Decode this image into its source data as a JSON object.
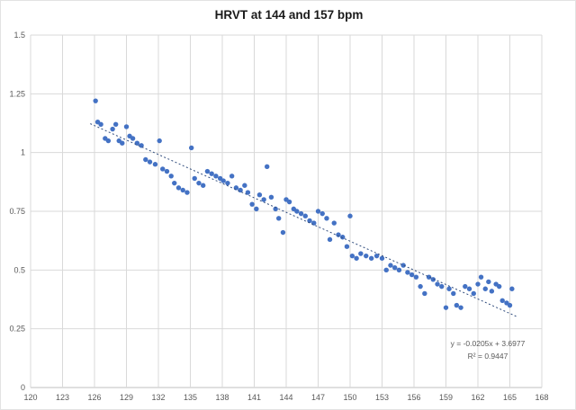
{
  "chart": {
    "title": "HRVT at 144 and 157 bpm",
    "annotation": {
      "equation": "y = -0.0205x + 3.6977",
      "r_squared": "R² = 0.9447"
    }
  },
  "chart_data": {
    "type": "scatter",
    "title": "HRVT at 144 and 157 bpm",
    "xlabel": "",
    "ylabel": "",
    "xlim": [
      120,
      168
    ],
    "ylim": [
      0,
      1.5
    ],
    "x_ticks": [
      120,
      123,
      126,
      129,
      132,
      135,
      138,
      141,
      144,
      147,
      150,
      153,
      156,
      159,
      162,
      165,
      168
    ],
    "y_ticks": [
      0,
      0.25,
      0.5,
      0.75,
      1,
      1.25,
      1.5
    ],
    "grid": true,
    "grid_color": "#d9d9d9",
    "axis_color": "#bfbfbf",
    "point_color": "#4472c4",
    "trendline": {
      "slope": -0.0205,
      "intercept": 3.6977,
      "x_start": 125.6,
      "x_end": 165.6,
      "style": "dotted",
      "color": "#2f4b7c",
      "equation_label": "y = -0.0205x + 3.6977",
      "r2_label": "R² = 0.9447"
    },
    "points": [
      [
        126.1,
        1.22
      ],
      [
        126.3,
        1.13
      ],
      [
        126.6,
        1.12
      ],
      [
        127.0,
        1.06
      ],
      [
        127.3,
        1.05
      ],
      [
        127.7,
        1.1
      ],
      [
        128.0,
        1.12
      ],
      [
        128.3,
        1.05
      ],
      [
        128.6,
        1.04
      ],
      [
        129.0,
        1.11
      ],
      [
        129.3,
        1.07
      ],
      [
        129.6,
        1.06
      ],
      [
        130.0,
        1.04
      ],
      [
        130.4,
        1.03
      ],
      [
        130.8,
        0.97
      ],
      [
        131.2,
        0.96
      ],
      [
        131.7,
        0.95
      ],
      [
        132.1,
        1.05
      ],
      [
        132.4,
        0.93
      ],
      [
        132.8,
        0.92
      ],
      [
        133.2,
        0.9
      ],
      [
        133.5,
        0.87
      ],
      [
        133.9,
        0.85
      ],
      [
        134.3,
        0.84
      ],
      [
        134.7,
        0.83
      ],
      [
        135.1,
        1.02
      ],
      [
        135.4,
        0.89
      ],
      [
        135.8,
        0.87
      ],
      [
        136.2,
        0.86
      ],
      [
        136.6,
        0.92
      ],
      [
        137.0,
        0.91
      ],
      [
        137.4,
        0.9
      ],
      [
        137.8,
        0.89
      ],
      [
        138.1,
        0.88
      ],
      [
        138.5,
        0.87
      ],
      [
        138.9,
        0.9
      ],
      [
        139.3,
        0.85
      ],
      [
        139.7,
        0.84
      ],
      [
        140.1,
        0.86
      ],
      [
        140.4,
        0.83
      ],
      [
        140.8,
        0.78
      ],
      [
        141.2,
        0.76
      ],
      [
        141.5,
        0.82
      ],
      [
        141.9,
        0.8
      ],
      [
        142.2,
        0.94
      ],
      [
        142.6,
        0.81
      ],
      [
        143.0,
        0.76
      ],
      [
        143.3,
        0.72
      ],
      [
        143.7,
        0.66
      ],
      [
        144.0,
        0.8
      ],
      [
        144.3,
        0.79
      ],
      [
        144.7,
        0.76
      ],
      [
        145.0,
        0.75
      ],
      [
        145.4,
        0.74
      ],
      [
        145.8,
        0.73
      ],
      [
        146.2,
        0.71
      ],
      [
        146.6,
        0.7
      ],
      [
        147.0,
        0.75
      ],
      [
        147.4,
        0.74
      ],
      [
        147.8,
        0.72
      ],
      [
        148.1,
        0.63
      ],
      [
        148.5,
        0.7
      ],
      [
        148.9,
        0.65
      ],
      [
        149.3,
        0.64
      ],
      [
        149.7,
        0.6
      ],
      [
        150.0,
        0.73
      ],
      [
        150.2,
        0.56
      ],
      [
        150.6,
        0.55
      ],
      [
        151.0,
        0.57
      ],
      [
        151.5,
        0.56
      ],
      [
        152.0,
        0.55
      ],
      [
        152.5,
        0.56
      ],
      [
        153.0,
        0.55
      ],
      [
        153.4,
        0.5
      ],
      [
        153.8,
        0.52
      ],
      [
        154.2,
        0.51
      ],
      [
        154.6,
        0.5
      ],
      [
        155.0,
        0.52
      ],
      [
        155.4,
        0.49
      ],
      [
        155.8,
        0.48
      ],
      [
        156.2,
        0.47
      ],
      [
        156.6,
        0.43
      ],
      [
        157.0,
        0.4
      ],
      [
        157.4,
        0.47
      ],
      [
        157.8,
        0.46
      ],
      [
        158.2,
        0.44
      ],
      [
        158.6,
        0.43
      ],
      [
        159.0,
        0.34
      ],
      [
        159.3,
        0.42
      ],
      [
        159.7,
        0.4
      ],
      [
        160.0,
        0.35
      ],
      [
        160.4,
        0.34
      ],
      [
        160.8,
        0.43
      ],
      [
        161.2,
        0.42
      ],
      [
        161.6,
        0.4
      ],
      [
        162.0,
        0.44
      ],
      [
        162.3,
        0.47
      ],
      [
        162.7,
        0.42
      ],
      [
        163.0,
        0.45
      ],
      [
        163.3,
        0.41
      ],
      [
        163.7,
        0.44
      ],
      [
        164.0,
        0.43
      ],
      [
        164.3,
        0.37
      ],
      [
        164.7,
        0.36
      ],
      [
        165.0,
        0.35
      ],
      [
        165.2,
        0.42
      ]
    ],
    "legend": null,
    "notes": "Excel-style scatter with dotted linear trendline and equation annotation"
  }
}
